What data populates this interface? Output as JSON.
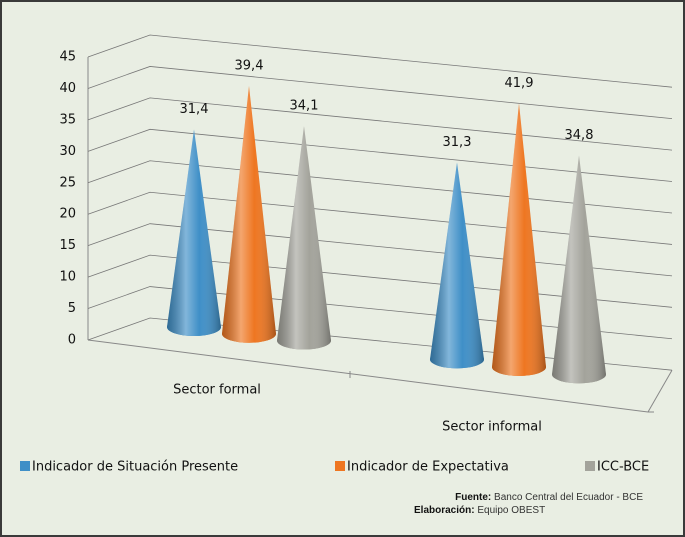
{
  "chart_data": {
    "type": "cone3d",
    "categories": [
      "Sector formal",
      "Sector informal"
    ],
    "series": [
      {
        "name": "Indicador de Situación Presente",
        "color": "#3f8fc7",
        "values": [
          31.4,
          31.3
        ],
        "value_labels": [
          "31,4",
          "31,3"
        ]
      },
      {
        "name": "Indicador de Expectativa",
        "color": "#ee7621",
        "values": [
          39.4,
          41.9
        ],
        "value_labels": [
          "39,4",
          "41,9"
        ]
      },
      {
        "name": "ICC-BCE",
        "color": "#a3a39b",
        "values": [
          34.1,
          34.8
        ],
        "value_labels": [
          "34,1",
          "34,8"
        ]
      }
    ],
    "ylim": [
      0,
      45
    ],
    "yticks": [
      0,
      5,
      10,
      15,
      20,
      25,
      30,
      35,
      40,
      45
    ],
    "grid": true,
    "legend": "bottom"
  },
  "footer": {
    "source_label": "Fuente:",
    "source": "Banco Central del Ecuador - BCE",
    "credit_label": "Elaboración:",
    "credit": "Equipo OBEST"
  }
}
